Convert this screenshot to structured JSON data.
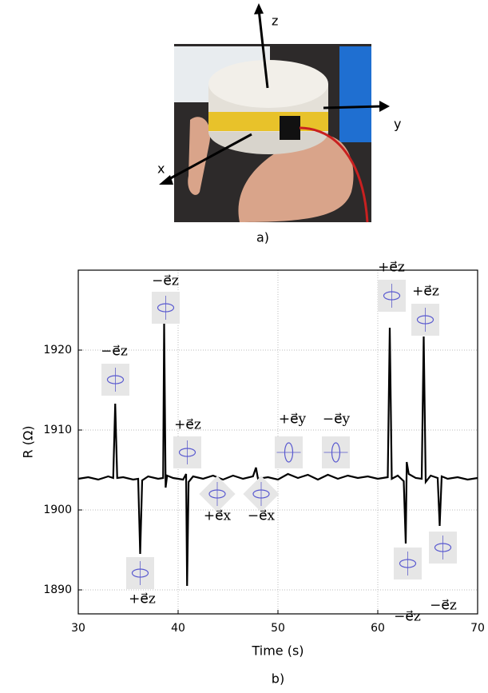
{
  "figure_a": {
    "caption": "a)",
    "axis_labels": [
      "z",
      "y",
      "x"
    ]
  },
  "chart_data": {
    "type": "line",
    "caption": "b)",
    "x_label": "Time (s)",
    "y_label": "R (Ω)",
    "xlim": [
      30,
      70
    ],
    "xticks": [
      30,
      40,
      50,
      60,
      70
    ],
    "ylim": [
      1887,
      1930
    ],
    "yticks": [
      1890,
      1900,
      1910,
      1920
    ],
    "grid": true,
    "series": [
      {
        "color": "#000000",
        "x": [
          30,
          31,
          32,
          33,
          33.5,
          33.7,
          33.9,
          34.5,
          35.5,
          36,
          36.2,
          36.4,
          37,
          38,
          38.5,
          38.6,
          38.75,
          38.9,
          39.5,
          40.5,
          40.8,
          40.9,
          41.05,
          41.5,
          42.5,
          43.5,
          44.5,
          45.5,
          46.5,
          47.5,
          47.8,
          48,
          49,
          50,
          51,
          52,
          53,
          54,
          55,
          56,
          57,
          58,
          59,
          60,
          61,
          61.2,
          61.4,
          62,
          62.6,
          62.8,
          62.9,
          63.1,
          63.8,
          64.4,
          64.6,
          64.8,
          65.3,
          66,
          66.2,
          66.4,
          67,
          68,
          69,
          70
        ],
        "values": [
          1903.9,
          1904.1,
          1903.8,
          1904.2,
          1904,
          1913.3,
          1904,
          1904.1,
          1903.8,
          1903.9,
          1894.5,
          1903.7,
          1904.2,
          1903.9,
          1904,
          1923.5,
          1902.8,
          1904.3,
          1904,
          1903.8,
          1904.5,
          1890.5,
          1903.5,
          1904.2,
          1903.9,
          1904.3,
          1903.8,
          1904.3,
          1903.9,
          1904.2,
          1905.3,
          1903.9,
          1904.1,
          1903.8,
          1904.5,
          1904,
          1904.4,
          1903.8,
          1904.4,
          1903.9,
          1904.3,
          1904,
          1904.2,
          1903.9,
          1904.1,
          1922.8,
          1903.9,
          1904.3,
          1903.6,
          1895.8,
          1906,
          1904.5,
          1904,
          1903.9,
          1921.7,
          1903.5,
          1904.3,
          1904,
          1898,
          1904.2,
          1903.9,
          1904.1,
          1903.8,
          1904
        ]
      }
    ],
    "annotations": [
      "−e⃗z",
      "−e⃗z",
      "+e⃗z",
      "+e⃗z",
      "+e⃗x",
      "−e⃗x",
      "+e⃗y",
      "−e⃗y",
      "+e⃗z",
      "+e⃗z",
      "−e⃗z",
      "−e⃗z"
    ]
  }
}
